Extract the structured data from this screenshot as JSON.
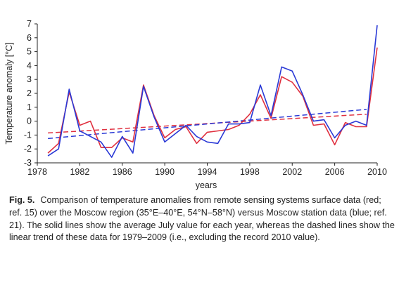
{
  "caption": {
    "label": "Fig. 5.",
    "text": "Comparison of temperature anomalies from remote sensing systems surface data (red; ref. 15) over the Moscow region (35°E–40°E, 54°N–58°N) versus Moscow station data (blue; ref. 21). The solid lines show the average July value for each year, whereas the dashed lines show the linear trend of these data for 1979–2009 (i.e., excluding the record 2010 value)."
  },
  "chart_data": {
    "type": "line",
    "xlabel": "years",
    "ylabel": "Temperature anomaly [°C]",
    "xlim": [
      1978,
      2010
    ],
    "ylim": [
      -3,
      7
    ],
    "x_ticks": [
      1978,
      1982,
      1986,
      1990,
      1994,
      1998,
      2002,
      2006,
      2010
    ],
    "y_ticks": [
      -3,
      -2,
      -1,
      0,
      1,
      2,
      3,
      4,
      5,
      6,
      7
    ],
    "x": [
      1979,
      1980,
      1981,
      1982,
      1983,
      1984,
      1985,
      1986,
      1987,
      1988,
      1989,
      1990,
      1991,
      1992,
      1993,
      1994,
      1995,
      1996,
      1997,
      1998,
      1999,
      2000,
      2001,
      2002,
      2003,
      2004,
      2005,
      2006,
      2007,
      2008,
      2009,
      2010
    ],
    "series": [
      {
        "color": "#e0303f",
        "style": "solid",
        "values": [
          -2.3,
          -1.6,
          2.1,
          -0.3,
          0.0,
          -1.9,
          -1.9,
          -1.2,
          -1.5,
          2.6,
          0.4,
          -1.2,
          -0.6,
          -0.4,
          -1.6,
          -0.8,
          -0.7,
          -0.6,
          -0.3,
          0.5,
          1.9,
          0.2,
          3.2,
          2.8,
          1.8,
          -0.3,
          -0.2,
          -1.7,
          -0.1,
          -0.4,
          -0.4,
          5.3
        ]
      },
      {
        "color": "#2a39d6",
        "style": "solid",
        "values": [
          -2.5,
          -2.0,
          2.3,
          -0.7,
          -1.1,
          -1.5,
          -2.6,
          -1.1,
          -2.3,
          2.5,
          0.3,
          -1.5,
          -0.9,
          -0.3,
          -1.1,
          -1.5,
          -1.6,
          -0.2,
          -0.2,
          -0.1,
          2.6,
          0.4,
          3.9,
          3.6,
          1.9,
          0.0,
          0.1,
          -1.2,
          -0.3,
          0.0,
          -0.3,
          6.9
        ]
      }
    ],
    "trends": [
      {
        "color": "#e0303f",
        "style": "dashed",
        "x": [
          1979,
          2009
        ],
        "y": [
          -0.85,
          0.5
        ]
      },
      {
        "color": "#2a39d6",
        "style": "dashed",
        "x": [
          1979,
          2009
        ],
        "y": [
          -1.25,
          0.85
        ]
      }
    ],
    "grid": false,
    "legend": false
  }
}
